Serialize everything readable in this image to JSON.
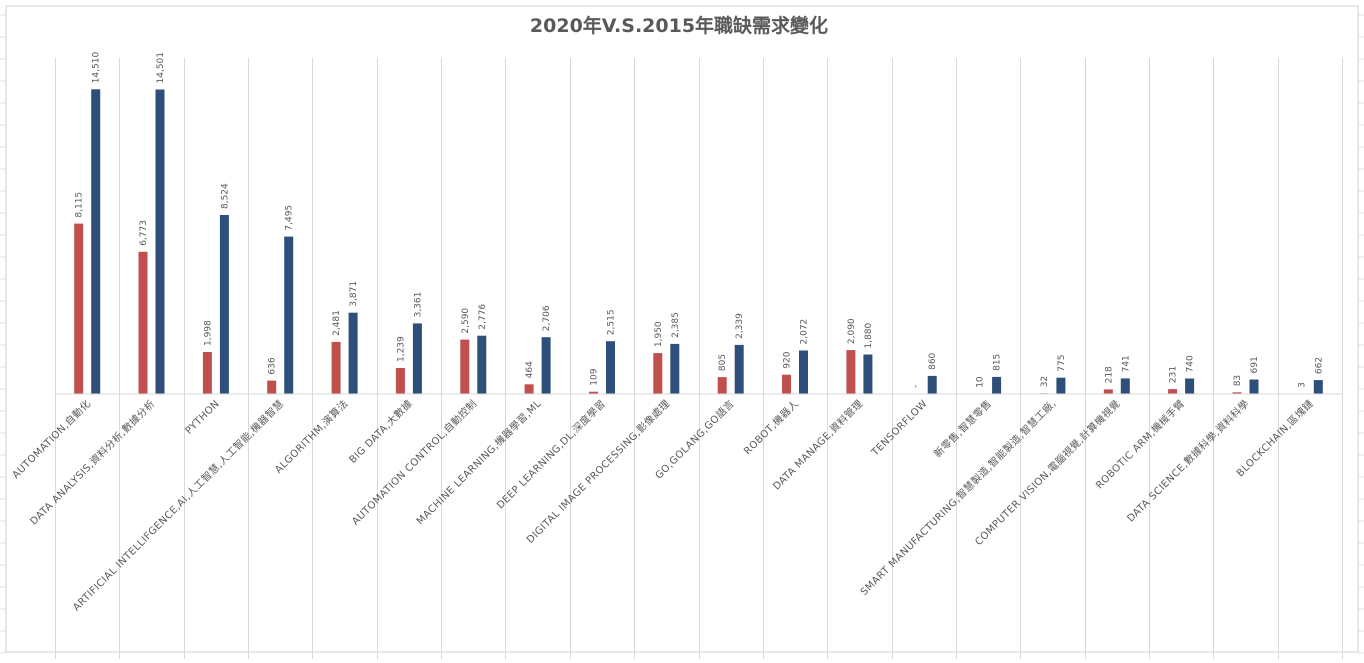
{
  "chart_data": {
    "type": "bar",
    "title": "2020年V.S.2015年職缺需求變化",
    "xlabel": "",
    "ylabel": "",
    "ylim": [
      0,
      16000
    ],
    "grid": "vertical category separators",
    "legend": "none",
    "categories": [
      "AUTOMATION,自動化",
      "DATA ANALYSIS,資料分析,數據分析",
      "PYTHON",
      "ARTIFICIAL INTELLIFGENCE,AI,人工智慧,人工智能,機器智慧",
      "ALGORITHM,演算法",
      "BIG DATA,大數據",
      "AUTOMATION CONTROL,自動控制",
      "MACHINE LEARNING,機器學習,ML",
      "DEEP LEARNING,DL,深度學習",
      "DIGITAL IMAGE PROCESSING,影像處理",
      "GO,GOLANG,GO語言",
      "ROBOT,機器人",
      "DATA MANAGE,資料管理",
      "TENSORFLOW",
      "新零售,智慧零售",
      "SMART MANUFACTURING,智慧製造,智能製造,智慧工廠,",
      "COMPUTER VISION,電腦視覺,計算機視覺",
      "ROBOTIC ARM,機械手臂",
      "DATA SCIENCE,數據科學,資料科學",
      "BLOCKCHAIN,區塊鏈"
    ],
    "series": [
      {
        "color": "#c0504d",
        "values": [
          8115,
          6773,
          1998,
          636,
          2481,
          1239,
          2590,
          464,
          109,
          1950,
          805,
          920,
          2090,
          0,
          10,
          32,
          218,
          231,
          83,
          3
        ],
        "labels": [
          "8,115",
          "6,773",
          "1,998",
          "636",
          "2,481",
          "1,239",
          "2,590",
          "464",
          "109",
          "1,950",
          "805",
          "920",
          "2,090",
          "-",
          "10",
          "32",
          "218",
          "231",
          "83",
          "3"
        ]
      },
      {
        "color": "#2e4f7a",
        "values": [
          14510,
          14501,
          8524,
          7495,
          3871,
          3361,
          2776,
          2706,
          2515,
          2385,
          2339,
          2072,
          1880,
          860,
          815,
          775,
          741,
          740,
          691,
          662
        ],
        "labels": [
          "14,510",
          "14,501",
          "8,524",
          "7,495",
          "3,871",
          "3,361",
          "2,776",
          "2,706",
          "2,515",
          "2,385",
          "2,339",
          "2,072",
          "1,880",
          "860",
          "815",
          "775",
          "741",
          "740",
          "691",
          "662"
        ]
      }
    ]
  }
}
